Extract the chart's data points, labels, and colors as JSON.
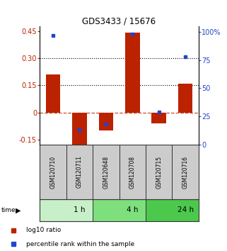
{
  "title": "GDS3433 / 15676",
  "samples": [
    "GSM120710",
    "GSM120711",
    "GSM120648",
    "GSM120708",
    "GSM120715",
    "GSM120716"
  ],
  "log10_ratio": [
    0.21,
    -0.18,
    -0.1,
    0.44,
    -0.06,
    0.16
  ],
  "percentile_rank": [
    97,
    13,
    18,
    98,
    29,
    78
  ],
  "time_groups": [
    {
      "label": "1 h",
      "start": 0,
      "end": 2,
      "color": "#c8f0c8"
    },
    {
      "label": "4 h",
      "start": 2,
      "end": 4,
      "color": "#7de07d"
    },
    {
      "label": "24 h",
      "start": 4,
      "end": 6,
      "color": "#4cc94c"
    }
  ],
  "bar_color": "#bb2200",
  "dot_color": "#2244cc",
  "ylim_left": [
    -0.175,
    0.475
  ],
  "ylim_right": [
    0,
    105
  ],
  "yticks_left": [
    -0.15,
    0,
    0.15,
    0.3,
    0.45
  ],
  "ytick_labels_left": [
    "-0.15",
    "0",
    "0.15",
    "0.30",
    "0.45"
  ],
  "yticks_right": [
    0,
    25,
    50,
    75,
    100
  ],
  "ytick_labels_right": [
    "0",
    "25",
    "50",
    "75",
    "100%"
  ],
  "hlines": [
    0.15,
    0.3
  ],
  "bar_width": 0.55,
  "sample_box_color": "#cccccc",
  "sample_box_edge": "#333333",
  "legend_items": [
    {
      "label": "log10 ratio",
      "color": "#bb2200"
    },
    {
      "label": "percentile rank within the sample",
      "color": "#2244cc"
    }
  ]
}
